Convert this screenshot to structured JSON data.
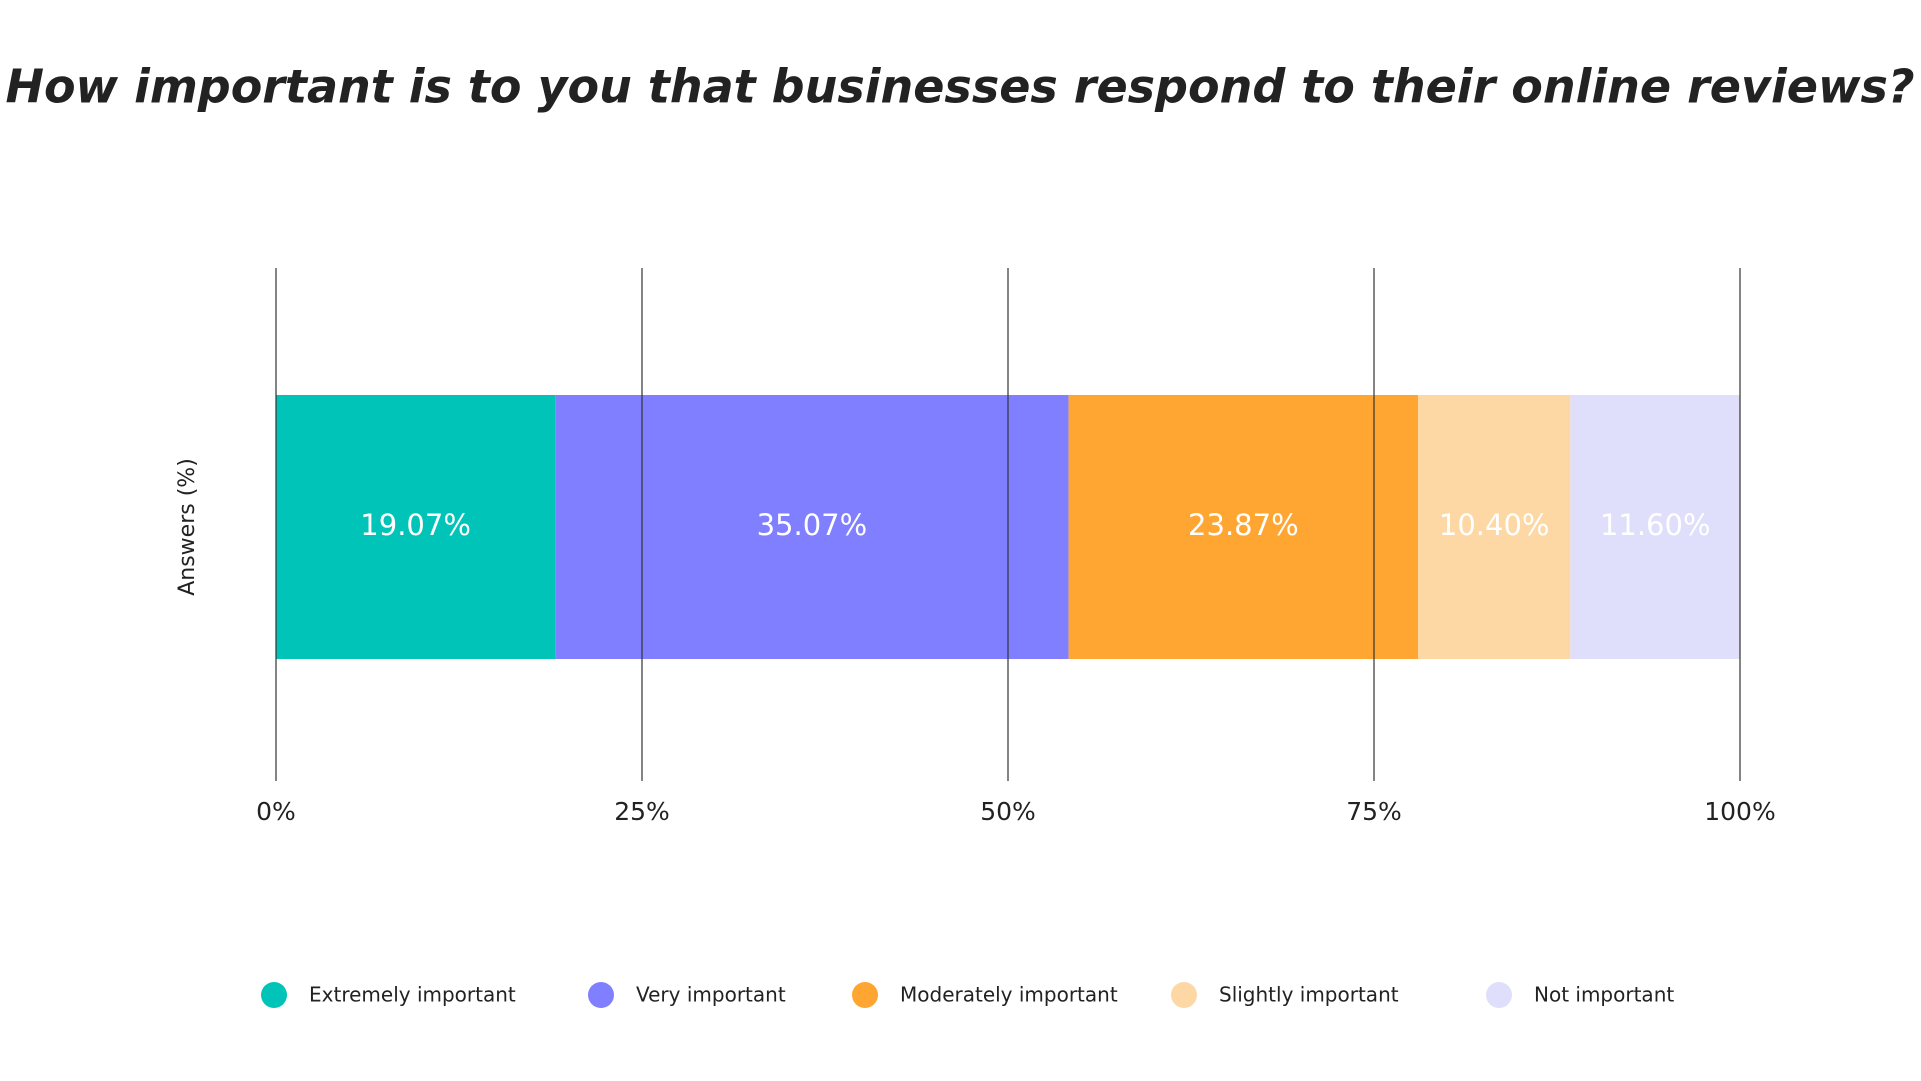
{
  "chart_data": {
    "type": "stacked-bar-horizontal",
    "title": "How important is to you that businesses respond to their online reviews?",
    "y_label": "Answers (%)",
    "series": [
      {
        "name": "Extremely important",
        "color": "#00c4b8",
        "values": [
          19.07
        ],
        "value_labels": [
          "19.07%"
        ]
      },
      {
        "name": "Very important",
        "color": "#7f7fff",
        "values": [
          35.07
        ],
        "value_labels": [
          "35.07%"
        ]
      },
      {
        "name": "Moderately important",
        "color": "#ffa632",
        "values": [
          23.87
        ],
        "value_labels": [
          "23.87%"
        ]
      },
      {
        "name": "Slightly important",
        "color": "#fdd8a5",
        "values": [
          10.4
        ],
        "value_labels": [
          "10.40%"
        ]
      },
      {
        "name": "Not important",
        "color": "#dfdffb",
        "values": [
          11.6
        ],
        "value_labels": [
          "11.60%"
        ]
      }
    ],
    "xlim": [
      0,
      100
    ],
    "xticks": [
      {
        "value": 0,
        "label": "0%"
      },
      {
        "value": 25,
        "label": "25%"
      },
      {
        "value": 50,
        "label": "50%"
      },
      {
        "value": 75,
        "label": "75%"
      },
      {
        "value": 100,
        "label": "100%"
      }
    ],
    "grid": true,
    "legend": "bottom"
  }
}
